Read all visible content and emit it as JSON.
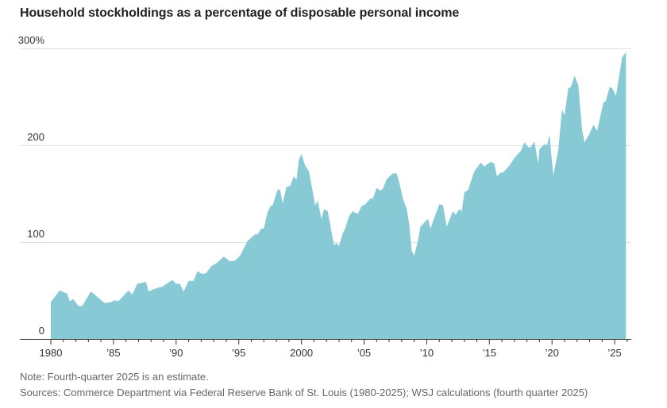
{
  "chart_data": {
    "type": "area",
    "title": "Household stockholdings as a percentage of disposable personal income",
    "xlabel": "",
    "ylabel": "",
    "xlim": [
      1980,
      2026
    ],
    "ylim": [
      0,
      300
    ],
    "grid": true,
    "color": "#88c9d6",
    "y_ticks": [
      {
        "value": 0,
        "label": "0"
      },
      {
        "value": 100,
        "label": "100"
      },
      {
        "value": 200,
        "label": "200"
      },
      {
        "value": 300,
        "label": "300%"
      }
    ],
    "x_ticks": [
      {
        "value": 1980,
        "label": "1980"
      },
      {
        "value": 1985,
        "label": "’85"
      },
      {
        "value": 1990,
        "label": "’90"
      },
      {
        "value": 1995,
        "label": "’95"
      },
      {
        "value": 2000,
        "label": "2000"
      },
      {
        "value": 2005,
        "label": "’05"
      },
      {
        "value": 2010,
        "label": "’10"
      },
      {
        "value": 2015,
        "label": "’15"
      },
      {
        "value": 2020,
        "label": "’20"
      },
      {
        "value": 2025,
        "label": "’25"
      }
    ],
    "x": [
      1980.0,
      1980.7,
      1981.3,
      1981.5,
      1981.8,
      1982.2,
      1982.5,
      1983.2,
      1984.3,
      1984.8,
      1985.1,
      1985.4,
      1986.2,
      1986.5,
      1986.9,
      1987.6,
      1987.8,
      1988.3,
      1988.9,
      1989.7,
      1990.0,
      1990.3,
      1990.6,
      1991.0,
      1991.4,
      1991.7,
      1992.1,
      1992.4,
      1992.8,
      1993.3,
      1993.8,
      1994.3,
      1994.7,
      1995.1,
      1995.7,
      1996.3,
      1996.5,
      1996.8,
      1997.0,
      1997.3,
      1997.6,
      1997.7,
      1998.1,
      1998.3,
      1998.5,
      1998.8,
      1999.1,
      1999.4,
      1999.6,
      1999.8,
      2000.0,
      2000.3,
      2000.6,
      2001.1,
      2001.3,
      2001.6,
      2001.8,
      2002.1,
      2002.6,
      2002.8,
      2003.0,
      2003.3,
      2003.5,
      2003.8,
      2004.1,
      2004.5,
      2004.8,
      2005.1,
      2005.5,
      2005.7,
      2006.0,
      2006.3,
      2006.5,
      2006.8,
      2007.3,
      2007.6,
      2007.8,
      2008.1,
      2008.4,
      2008.6,
      2008.8,
      2009.0,
      2009.3,
      2009.5,
      2009.8,
      2010.1,
      2010.3,
      2010.6,
      2011.0,
      2011.3,
      2011.6,
      2012.1,
      2012.3,
      2012.6,
      2012.8,
      2013.0,
      2013.3,
      2013.8,
      2014.3,
      2014.6,
      2015.1,
      2015.4,
      2015.6,
      2015.9,
      2016.1,
      2016.6,
      2017.0,
      2017.5,
      2017.8,
      2018.1,
      2018.3,
      2018.6,
      2018.9,
      2019.0,
      2019.4,
      2019.6,
      2019.8,
      2020.1,
      2020.5,
      2020.8,
      2021.0,
      2021.3,
      2021.5,
      2021.8,
      2022.1,
      2022.4,
      2022.6,
      2023.0,
      2023.3,
      2023.6,
      2024.1,
      2024.3,
      2024.6,
      2024.8,
      2025.1,
      2025.6,
      2025.9
    ],
    "values": [
      38,
      50,
      47,
      39,
      41,
      34,
      34,
      49,
      37,
      38,
      40,
      39,
      50,
      46,
      57,
      59,
      49,
      52,
      54,
      61,
      57,
      57,
      49,
      60,
      60,
      70,
      67,
      68,
      75,
      79,
      85,
      80,
      81,
      86,
      101,
      108,
      108,
      114,
      114,
      131,
      138,
      138,
      154,
      154,
      140,
      157,
      158,
      168,
      164,
      185,
      191,
      179,
      173,
      138,
      143,
      124,
      134,
      132,
      97,
      99,
      96,
      109,
      114,
      127,
      132,
      129,
      137,
      139,
      145,
      145,
      156,
      153,
      155,
      165,
      171,
      171,
      162,
      145,
      134,
      119,
      91,
      86,
      102,
      116,
      120,
      124,
      114,
      125,
      139,
      138,
      116,
      132,
      128,
      134,
      132,
      151,
      154,
      173,
      182,
      178,
      183,
      181,
      168,
      172,
      172,
      179,
      187,
      194,
      203,
      198,
      198,
      204,
      181,
      196,
      201,
      200,
      211,
      169,
      195,
      237,
      231,
      259,
      260,
      272,
      262,
      216,
      203,
      212,
      221,
      215,
      244,
      246,
      260,
      259,
      251,
      291,
      296
    ]
  },
  "notes": {
    "note": "Note: Fourth-quarter 2025 is an estimate.",
    "sources": "Sources: Commerce Department via Federal Reserve Bank of St. Louis (1980-2025); WSJ calculations (fourth quarter 2025)"
  }
}
